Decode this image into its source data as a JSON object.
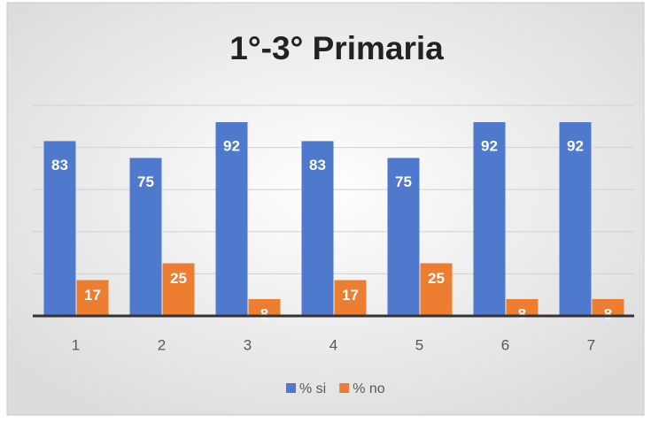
{
  "chart_data": {
    "type": "bar",
    "title": "1°-3° Primaria",
    "categories": [
      "1",
      "2",
      "3",
      "4",
      "5",
      "6",
      "7"
    ],
    "series": [
      {
        "name": "% si",
        "color": "#4f79cc",
        "values": [
          83,
          75,
          92,
          83,
          75,
          92,
          92
        ]
      },
      {
        "name": "% no",
        "color": "#ed7d31",
        "values": [
          17,
          25,
          8,
          17,
          25,
          8,
          8
        ]
      }
    ],
    "ylim": [
      0,
      100
    ],
    "yticks": [
      0,
      20,
      40,
      60,
      80,
      100
    ],
    "grid": true,
    "legend": "bottom"
  }
}
